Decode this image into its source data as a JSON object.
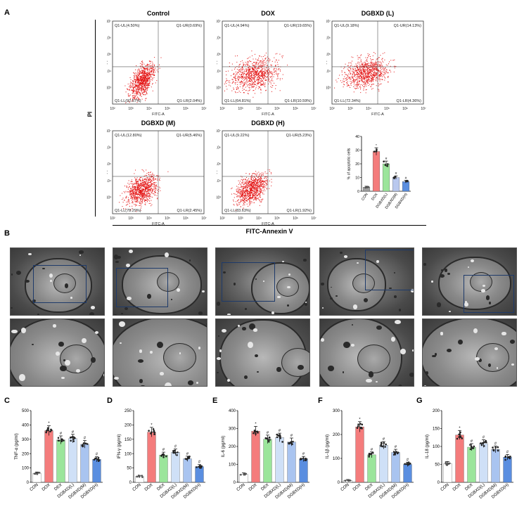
{
  "panel_labels": {
    "a": "A",
    "b": "B",
    "c": "C",
    "d": "D",
    "e": "E",
    "f": "F",
    "g": "G"
  },
  "flow": {
    "y_axis_label": "PI",
    "x_axis_label": "FITC-Annexin V",
    "x_tick_labels": [
      "10²",
      "10³",
      "10⁴",
      "10⁵",
      "10⁶",
      "10⁷"
    ],
    "y_tick_labels": [
      "10²",
      "10³",
      "10⁴",
      "10⁵",
      "10⁶",
      "10⁷"
    ],
    "plot_xlabel": "FITC-A",
    "plot_ylabel": "PI",
    "plots": [
      {
        "title": "Control",
        "ul": "Q1-UL(4.50%)",
        "ur": "Q1-UR(0.69%)",
        "ll": "Q1-LL(92.57%)",
        "lr": "Q1-LR(2.04%)"
      },
      {
        "title": "DOX",
        "ul": "Q1-UL(4.94%)",
        "ur": "Q1-UR(19.65%)",
        "ll": "Q1-LL(64.81%)",
        "lr": "Q1-LR(10.59%)"
      },
      {
        "title": "DGBXD (L)",
        "ul": "Q1-UL(9.18%)",
        "ur": "Q1-UR(14.13%)",
        "ll": "Q1-LL(72.34%)",
        "lr": "Q1-LR(4.36%)"
      },
      {
        "title": "DGBXD (M)",
        "ul": "Q1-UL(12.80%)",
        "ur": "Q1-UR(5.46%)",
        "ll": "Q1-LL(78.29%)",
        "lr": "Q1-LR(2.45%)"
      },
      {
        "title": "DGBXD (H)",
        "ul": "Q1-UL(9.22%)",
        "ur": "Q1-UR(5.23%)",
        "ll": "Q1-LL(83.63%)",
        "lr": "Q1-LR(1.92%)"
      }
    ]
  },
  "chart_data": [
    {
      "type": "bar",
      "ylabel": "% of apoptotic cells",
      "categories": [
        "CON",
        "DOX",
        "DGBXD(L)",
        "DGBXD(M)",
        "DGBXD(H)"
      ],
      "values": [
        3,
        29,
        20,
        10,
        7
      ],
      "ylim": [
        0,
        40
      ],
      "yticks": [
        0,
        10,
        20,
        30,
        40
      ],
      "significance": [
        "",
        "*",
        "#",
        "#",
        "#"
      ],
      "colors": [
        "#9e9e9e",
        "#f47c7c",
        "#9be59b",
        "#b9c8ee",
        "#5a8ee0"
      ]
    },
    {
      "type": "bar",
      "ylabel": "TNF-α (pg/ml)",
      "categories": [
        "CON",
        "DOX",
        "DEX",
        "DGBXD(L)",
        "DGBXD(M)",
        "DGBXD(H)"
      ],
      "values": [
        62,
        360,
        295,
        305,
        265,
        160
      ],
      "ylim": [
        0,
        500
      ],
      "yticks": [
        0,
        100,
        200,
        300,
        400,
        500
      ],
      "significance": [
        "",
        "*",
        "#",
        "#",
        "#",
        "#"
      ],
      "colors": [
        "#ffffff",
        "#f47c7c",
        "#9be59b",
        "#cfe0f7",
        "#a9c4f0",
        "#5a8ee0"
      ]
    },
    {
      "type": "bar",
      "ylabel": "IFN-γ (pg/ml)",
      "categories": [
        "CON",
        "DOX",
        "DEX",
        "DGBXD(L)",
        "DGBXD(M)",
        "DGBXD(H)"
      ],
      "values": [
        20,
        175,
        95,
        105,
        82,
        55
      ],
      "ylim": [
        0,
        250
      ],
      "yticks": [
        0,
        50,
        100,
        150,
        200,
        250
      ],
      "significance": [
        "",
        "*",
        "#",
        "#",
        "#",
        "#"
      ],
      "colors": [
        "#ffffff",
        "#f47c7c",
        "#9be59b",
        "#cfe0f7",
        "#a9c4f0",
        "#5a8ee0"
      ]
    },
    {
      "type": "bar",
      "ylabel": "IL-6 (pg/ml)",
      "categories": [
        "CON",
        "DOX",
        "DEX",
        "DGBXD(L)",
        "DGBXD(M)",
        "DGBXD(H)"
      ],
      "values": [
        45,
        285,
        240,
        250,
        225,
        130
      ],
      "ylim": [
        0,
        400
      ],
      "yticks": [
        0,
        100,
        200,
        300,
        400
      ],
      "significance": [
        "",
        "*",
        "#",
        "#",
        "#",
        "#"
      ],
      "colors": [
        "#ffffff",
        "#f47c7c",
        "#9be59b",
        "#cfe0f7",
        "#a9c4f0",
        "#5a8ee0"
      ]
    },
    {
      "type": "bar",
      "ylabel": "IL-1β (pg/ml)",
      "categories": [
        "CON",
        "DOX",
        "DEX",
        "DGBXD(L)",
        "DGBXD(M)",
        "DGBXD(H)"
      ],
      "values": [
        8,
        232,
        115,
        155,
        125,
        75
      ],
      "ylim": [
        0,
        300
      ],
      "yticks": [
        0,
        100,
        200,
        300
      ],
      "significance": [
        "",
        "*",
        "#",
        "#",
        "#",
        "#"
      ],
      "colors": [
        "#ffffff",
        "#f47c7c",
        "#9be59b",
        "#cfe0f7",
        "#a9c4f0",
        "#5a8ee0"
      ]
    },
    {
      "type": "bar",
      "ylabel": "IL-18 (pg/ml)",
      "categories": [
        "CON",
        "DOX",
        "DEX",
        "DGBXD(L)",
        "DGBXD(M)",
        "DGBXD(H)"
      ],
      "values": [
        52,
        132,
        98,
        108,
        92,
        70
      ],
      "ylim": [
        0,
        200
      ],
      "yticks": [
        0,
        50,
        100,
        150,
        200
      ],
      "significance": [
        "",
        "*",
        "#",
        "#",
        "#",
        "#"
      ],
      "colors": [
        "#ffffff",
        "#f47c7c",
        "#9be59b",
        "#cfe0f7",
        "#a9c4f0",
        "#5a8ee0"
      ]
    }
  ]
}
